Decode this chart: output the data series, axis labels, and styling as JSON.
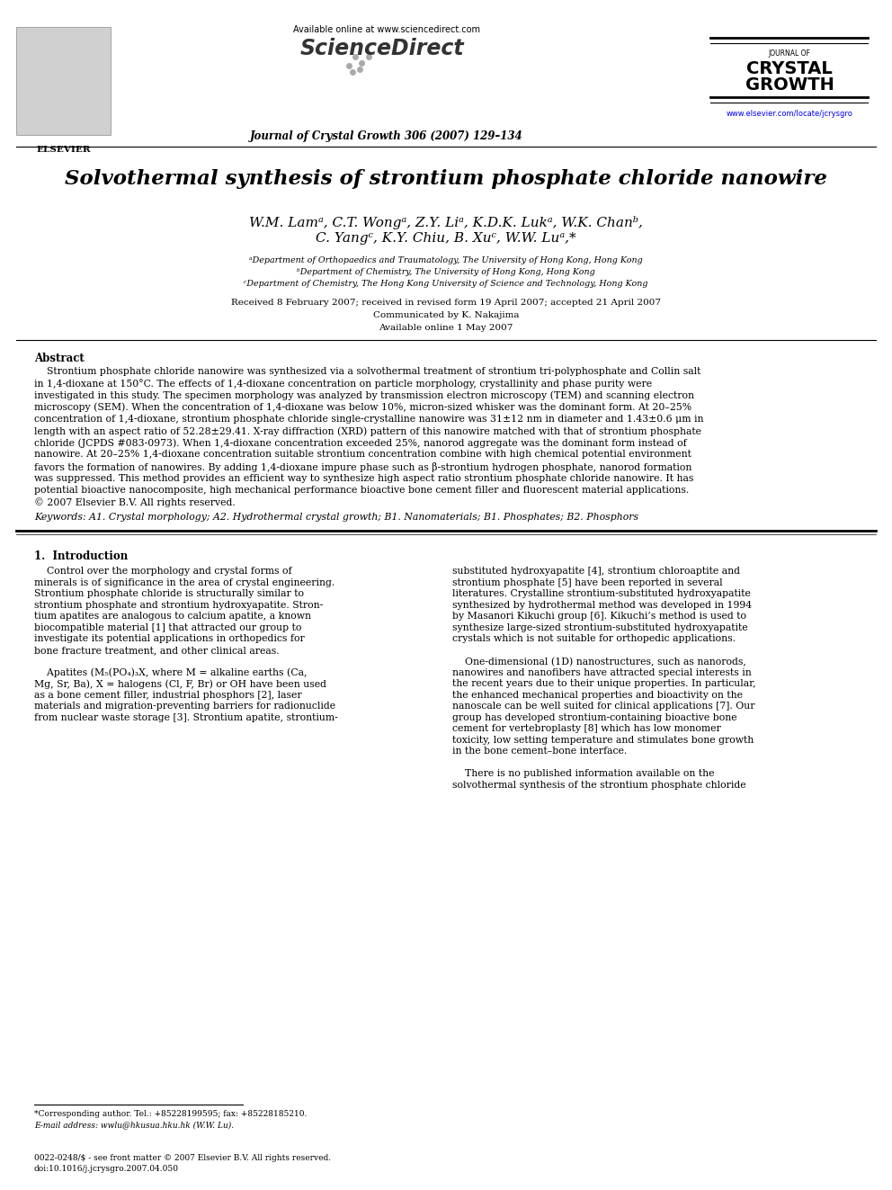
{
  "bg_color": "#ffffff",
  "header": {
    "available_online": "Available online at www.sciencedirect.com",
    "journal_line": "Journal of Crystal Growth 306 (2007) 129–134",
    "website": "www.elsevier.com/locate/jcrysgro",
    "journal_title_small": "JOURNAL OF",
    "journal_title_bold1": "CRYSTAL",
    "journal_title_bold2": "GROWTH"
  },
  "title": "Solvothermal synthesis of strontium phosphate chloride nanowire",
  "authors_line1": "W.M. Lamᵃ, C.T. Wongᵃ, Z.Y. Liᵃ, K.D.K. Lukᵃ, W.K. Chanᵇ,",
  "authors_line2": "C. Yangᶜ, K.Y. Chiu, B. Xuᶜ, W.W. Luᵃ,*",
  "affil_a": "ᵃDepartment of Orthopaedics and Traumatology, The University of Hong Kong, Hong Kong",
  "affil_b": "ᵇDepartment of Chemistry, The University of Hong Kong, Hong Kong",
  "affil_c": "ᶜDepartment of Chemistry, The Hong Kong University of Science and Technology, Hong Kong",
  "received": "Received 8 February 2007; received in revised form 19 April 2007; accepted 21 April 2007",
  "communicated": "Communicated by K. Nakajima",
  "available_online2": "Available online 1 May 2007",
  "abstract_title": "Abstract",
  "keywords": "Keywords: A1. Crystal morphology; A2. Hydrothermal crystal growth; B1. Nanomaterials; B1. Phosphates; B2. Phosphors",
  "section1_title": "1.  Introduction"
}
